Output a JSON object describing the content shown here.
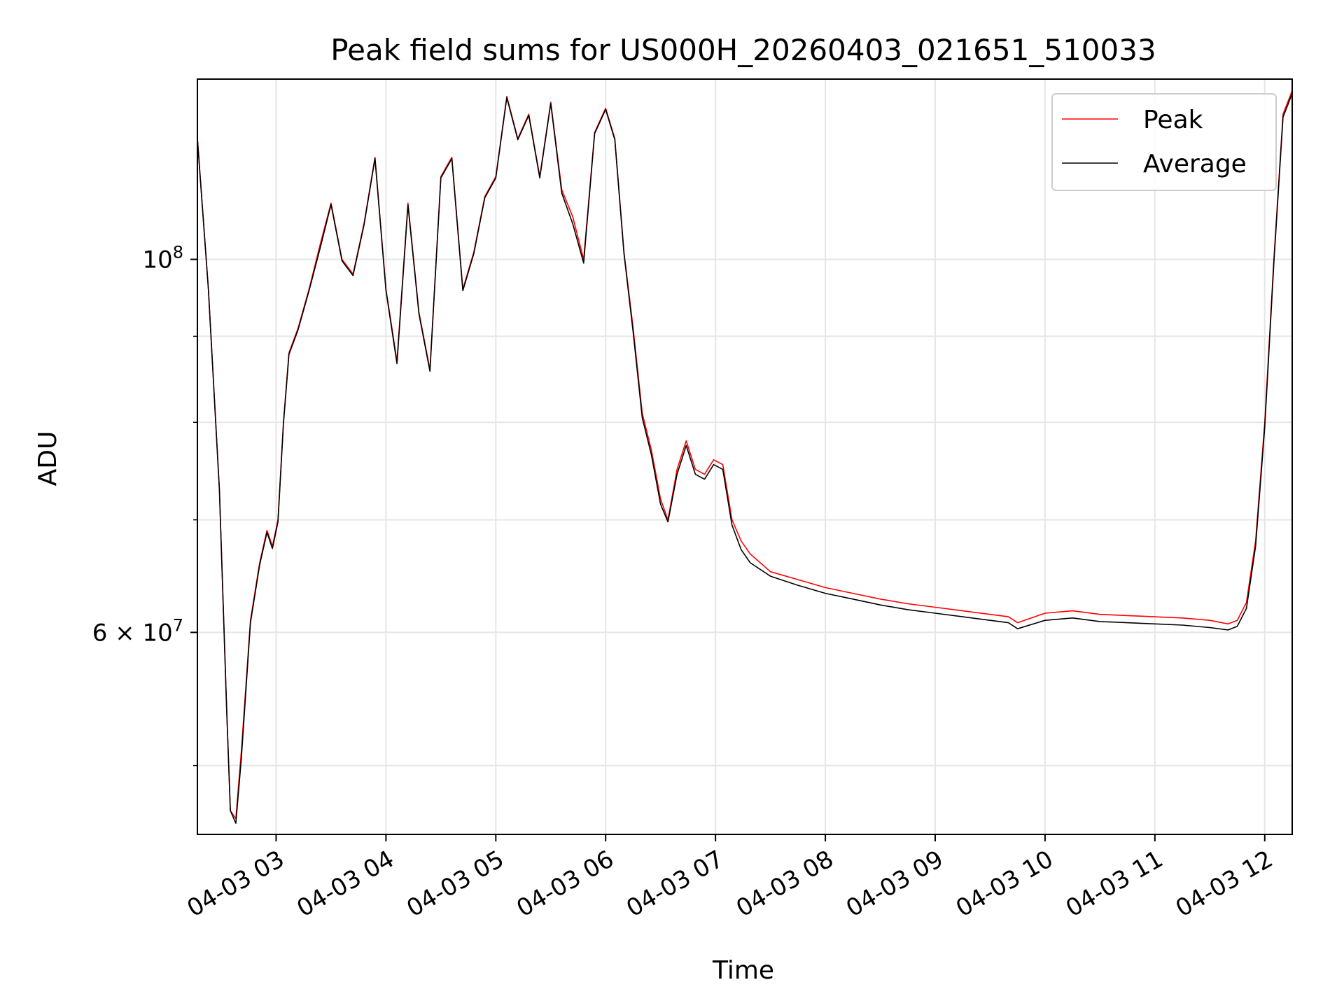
{
  "chart_data": {
    "type": "line",
    "title": "Peak field sums for US000H_20260403_021651_510033",
    "xlabel": "Time",
    "ylabel": "ADU",
    "yscale": "log",
    "xlim": [
      "2026-04-03 02:17",
      "2026-04-03 12:15"
    ],
    "ylim": [
      45500000,
      128000000
    ],
    "grid": true,
    "legend_position": "top-right",
    "x_ticks": [
      "04-03 03",
      "04-03 04",
      "04-03 05",
      "04-03 06",
      "04-03 07",
      "04-03 08",
      "04-03 09",
      "04-03 10",
      "04-03 11",
      "04-03 12"
    ],
    "y_major_ticks": [
      {
        "value": 100000000,
        "label_base": "10",
        "label_exp": "8",
        "label_mult": ""
      },
      {
        "value": 60000000,
        "label_base": "10",
        "label_exp": "7",
        "label_mult": "6 × "
      }
    ],
    "y_minor_ticks": [
      50000000,
      70000000,
      80000000,
      90000000
    ],
    "x": [
      "2026-04-03 02:17",
      "2026-04-03 02:23",
      "2026-04-03 02:29",
      "2026-04-03 02:33",
      "2026-04-03 02:35",
      "2026-04-03 02:38",
      "2026-04-03 02:41",
      "2026-04-03 02:46",
      "2026-04-03 02:51",
      "2026-04-03 02:55",
      "2026-04-03 02:58",
      "2026-04-03 03:01",
      "2026-04-03 03:04",
      "2026-04-03 03:07",
      "2026-04-03 03:12",
      "2026-04-03 03:18",
      "2026-04-03 03:24",
      "2026-04-03 03:30",
      "2026-04-03 03:36",
      "2026-04-03 03:42",
      "2026-04-03 03:48",
      "2026-04-03 03:54",
      "2026-04-03 04:00",
      "2026-04-03 04:06",
      "2026-04-03 04:12",
      "2026-04-03 04:18",
      "2026-04-03 04:24",
      "2026-04-03 04:30",
      "2026-04-03 04:36",
      "2026-04-03 04:42",
      "2026-04-03 04:48",
      "2026-04-03 04:54",
      "2026-04-03 05:00",
      "2026-04-03 05:06",
      "2026-04-03 05:12",
      "2026-04-03 05:18",
      "2026-04-03 05:24",
      "2026-04-03 05:30",
      "2026-04-03 05:36",
      "2026-04-03 05:42",
      "2026-04-03 05:48",
      "2026-04-03 05:54",
      "2026-04-03 06:00",
      "2026-04-03 06:05",
      "2026-04-03 06:10",
      "2026-04-03 06:15",
      "2026-04-03 06:20",
      "2026-04-03 06:25",
      "2026-04-03 06:30",
      "2026-04-03 06:34",
      "2026-04-03 06:39",
      "2026-04-03 06:44",
      "2026-04-03 06:49",
      "2026-04-03 06:54",
      "2026-04-03 06:59",
      "2026-04-03 07:04",
      "2026-04-03 07:09",
      "2026-04-03 07:14",
      "2026-04-03 07:19",
      "2026-04-03 07:30",
      "2026-04-03 07:45",
      "2026-04-03 08:00",
      "2026-04-03 08:15",
      "2026-04-03 08:30",
      "2026-04-03 08:45",
      "2026-04-03 09:00",
      "2026-04-03 09:15",
      "2026-04-03 09:30",
      "2026-04-03 09:40",
      "2026-04-03 09:45",
      "2026-04-03 10:00",
      "2026-04-03 10:15",
      "2026-04-03 10:30",
      "2026-04-03 10:45",
      "2026-04-03 11:00",
      "2026-04-03 11:15",
      "2026-04-03 11:30",
      "2026-04-03 11:40",
      "2026-04-03 11:45",
      "2026-04-03 11:50",
      "2026-04-03 11:55",
      "2026-04-03 12:00",
      "2026-04-03 12:05",
      "2026-04-03 12:10",
      "2026-04-03 12:15"
    ],
    "series": [
      {
        "name": "Peak",
        "color": "#ff0000",
        "values": [
          118000000,
          96000000,
          73000000,
          54000000,
          47000000,
          46500000,
          51000000,
          61000000,
          66000000,
          69000000,
          67500000,
          70000000,
          80000000,
          88000000,
          91000000,
          96000000,
          102000000,
          108000000,
          100000000,
          98000000,
          105000000,
          115000000,
          96000000,
          87000000,
          108000000,
          93000000,
          86000000,
          112000000,
          115000000,
          96000000,
          101000000,
          109000000,
          112000000,
          125000000,
          118000000,
          122000000,
          112000000,
          124000000,
          110000000,
          106000000,
          100000000,
          119000000,
          123000000,
          118000000,
          101000000,
          91000000,
          81000000,
          77000000,
          72000000,
          70000000,
          75000000,
          78000000,
          75000000,
          74500000,
          76000000,
          75500000,
          70000000,
          68000000,
          66800000,
          65200000,
          64500000,
          63800000,
          63300000,
          62800000,
          62400000,
          62100000,
          61800000,
          61500000,
          61300000,
          60800000,
          61600000,
          61800000,
          61500000,
          61400000,
          61300000,
          61200000,
          61000000,
          60700000,
          61000000,
          62500000,
          68000000,
          80000000,
          100000000,
          122000000,
          126000000
        ]
      },
      {
        "name": "Average",
        "color": "#000000",
        "values": [
          118000000,
          96000000,
          73000000,
          54000000,
          47000000,
          46200000,
          50500000,
          60800000,
          65800000,
          68800000,
          67300000,
          69800000,
          79800000,
          87800000,
          90800000,
          95800000,
          101500000,
          107800000,
          99800000,
          97800000,
          104800000,
          114800000,
          95800000,
          86700000,
          107700000,
          92800000,
          85800000,
          111800000,
          114800000,
          95800000,
          100800000,
          108800000,
          111800000,
          124800000,
          117800000,
          121800000,
          111800000,
          123800000,
          109500000,
          105000000,
          99500000,
          118800000,
          122800000,
          117800000,
          100800000,
          90500000,
          80500000,
          76500000,
          71500000,
          69800000,
          74500000,
          77500000,
          74500000,
          74000000,
          75500000,
          75000000,
          69500000,
          67200000,
          66000000,
          64800000,
          64000000,
          63300000,
          62800000,
          62300000,
          61900000,
          61600000,
          61300000,
          61000000,
          60800000,
          60300000,
          61000000,
          61200000,
          60900000,
          60800000,
          60700000,
          60600000,
          60400000,
          60200000,
          60500000,
          62000000,
          67500000,
          79500000,
          99500000,
          121500000,
          125500000
        ]
      }
    ]
  }
}
